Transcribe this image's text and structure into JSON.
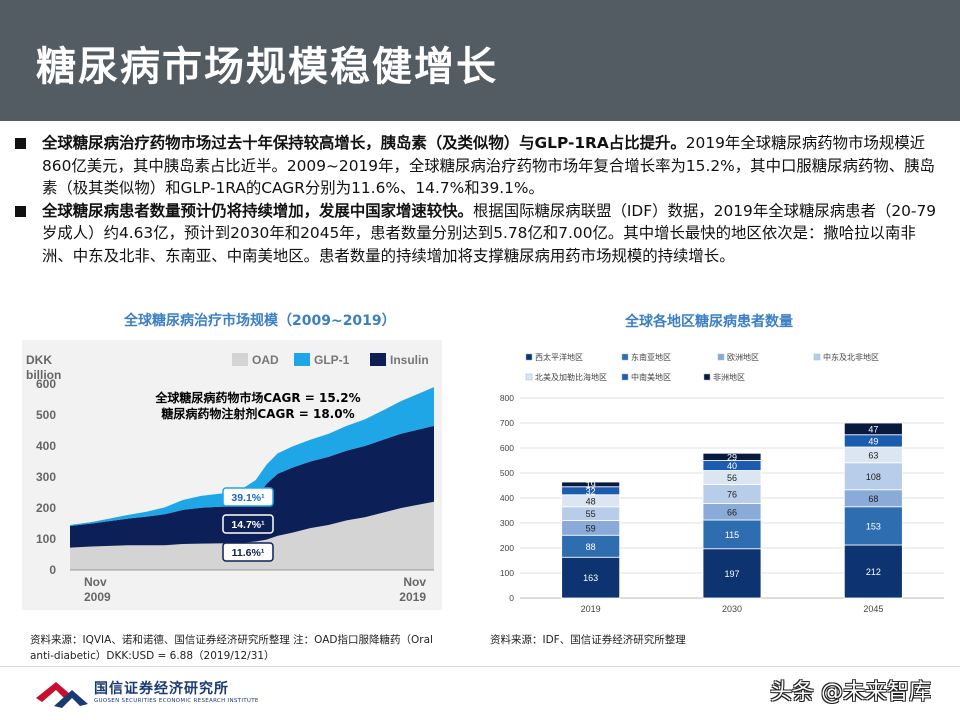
{
  "header": {
    "title": "糖尿病市场规模稳健增长"
  },
  "bullets": [
    {
      "bold": "全球糖尿病治疗药物市场过去十年保持较高增长，胰岛素（及类似物）与GLP-1RA占比提升。",
      "text": "2019年全球糖尿病药物市场规模近860亿美元，其中胰岛素占比近半。2009~2019年，全球糖尿病治疗药物市场年复合增长率为15.2%，其中口服糖尿病药物、胰岛素（极其类似物）和GLP-1RA的CAGR分别为11.6%、14.7%和39.1%。"
    },
    {
      "bold": "全球糖尿病患者数量预计仍将持续增加，发展中国家增速较快。",
      "text": "根据国际糖尿病联盟（IDF）数据，2019年全球糖尿病患者（20-79岁成人）约4.63亿，预计到2030年和2045年，患者数量分别达到5.78亿和7.00亿。其中增长最快的地区依次是：撒哈拉以南非洲、中东及北非、东南亚、中南美地区。患者数量的持续增加将支撑糖尿病用药市场规模的持续增长。"
    }
  ],
  "left_chart_title": "全球糖尿病治疗市场规模（2009~2019）",
  "right_chart_title": "全球各地区糖尿病患者数量",
  "chart_data": [
    {
      "type": "area",
      "stacked": true,
      "ylabel_line1": "DKK",
      "ylabel_line2": "billion",
      "ylim": [
        0,
        600
      ],
      "yticks": [
        0,
        100,
        200,
        300,
        400,
        500,
        600
      ],
      "x_labels": [
        {
          "line1": "Nov",
          "line2": "2009"
        },
        {
          "line1": "Nov",
          "line2": "2019"
        }
      ],
      "x": [
        2009.9,
        2010.5,
        2011,
        2011.5,
        2012,
        2012.5,
        2013,
        2013.5,
        2014,
        2014.5,
        2015,
        2015.3,
        2015.6,
        2016,
        2016.5,
        2017,
        2017.5,
        2018,
        2018.5,
        2019,
        2019.9
      ],
      "series": [
        {
          "name": "OAD",
          "color": "#d4d4d4",
          "values": [
            72,
            76,
            78,
            80,
            80,
            80,
            84,
            85,
            86,
            86,
            92,
            98,
            110,
            120,
            135,
            145,
            160,
            170,
            185,
            200,
            220
          ]
        },
        {
          "name": "Insulin",
          "color": "#0d1f57",
          "values": [
            70,
            74,
            80,
            86,
            92,
            100,
            110,
            116,
            118,
            120,
            140,
            180,
            200,
            210,
            215,
            220,
            225,
            230,
            235,
            240,
            245
          ]
        },
        {
          "name": "GLP-1",
          "color": "#1fa6e6",
          "values": [
            3,
            5,
            8,
            12,
            16,
            22,
            32,
            38,
            42,
            46,
            58,
            62,
            66,
            68,
            70,
            74,
            80,
            86,
            95,
            105,
            125
          ]
        }
      ],
      "legend_order": [
        "OAD",
        "GLP-1",
        "Insulin"
      ],
      "annotations": {
        "cagr_line1": "全球糖尿病药物市场CAGR = 15.2%",
        "cagr_line2": "糖尿病药物注射剂CAGR = 18.0%",
        "glp1_cagr": "39.1%¹",
        "insulin_cagr": "14.7%¹",
        "oad_cagr": "11.6%¹"
      }
    },
    {
      "type": "bar",
      "stacked": true,
      "categories": [
        "2019",
        "2030",
        "2045"
      ],
      "ylim": [
        0,
        800
      ],
      "yticks": [
        0,
        100,
        200,
        300,
        400,
        500,
        600,
        700,
        800
      ],
      "series": [
        {
          "name": "西太平洋地区",
          "color": "#0d3470",
          "values": [
            163,
            197,
            212
          ]
        },
        {
          "name": "东南亚地区",
          "color": "#2e6db0",
          "values": [
            88,
            115,
            153
          ]
        },
        {
          "name": "欧洲地区",
          "color": "#8aabd8",
          "values": [
            59,
            66,
            68
          ]
        },
        {
          "name": "中东及北非地区",
          "color": "#b8cdea",
          "values": [
            55,
            76,
            108
          ]
        },
        {
          "name": "北美及加勒比海地区",
          "color": "#dce6f3",
          "values": [
            48,
            56,
            63
          ]
        },
        {
          "name": "中南美地区",
          "color": "#1c5cb0",
          "values": [
            32,
            40,
            49
          ]
        },
        {
          "name": "非洲地区",
          "color": "#0a1a3e",
          "values": [
            19,
            29,
            47
          ]
        }
      ],
      "legend_order": [
        "西太平洋地区",
        "东南亚地区",
        "欧洲地区",
        "中东及北非地区",
        "北美及加勒比海地区",
        "中南美地区",
        "非洲地区"
      ]
    }
  ],
  "sources": {
    "left": "资料来源：IQVIA、诺和诺德、国信证券经济研究所整理 注：OAD指口服降糖药（Oral anti-diabetic）DKK:USD = 6.88（2019/12/31）",
    "right": "资料来源：IDF、国信证券经济研究所整理"
  },
  "footer": {
    "logo_text": "国信证券经济研究所",
    "logo_sub": "GUOSEN SECURITIES ECONOMIC RESEARCH INSTITUTE",
    "watermark": "头条 @未来智库",
    "logo_colors": {
      "red": "#c8102e",
      "blue": "#1b3a73"
    }
  }
}
